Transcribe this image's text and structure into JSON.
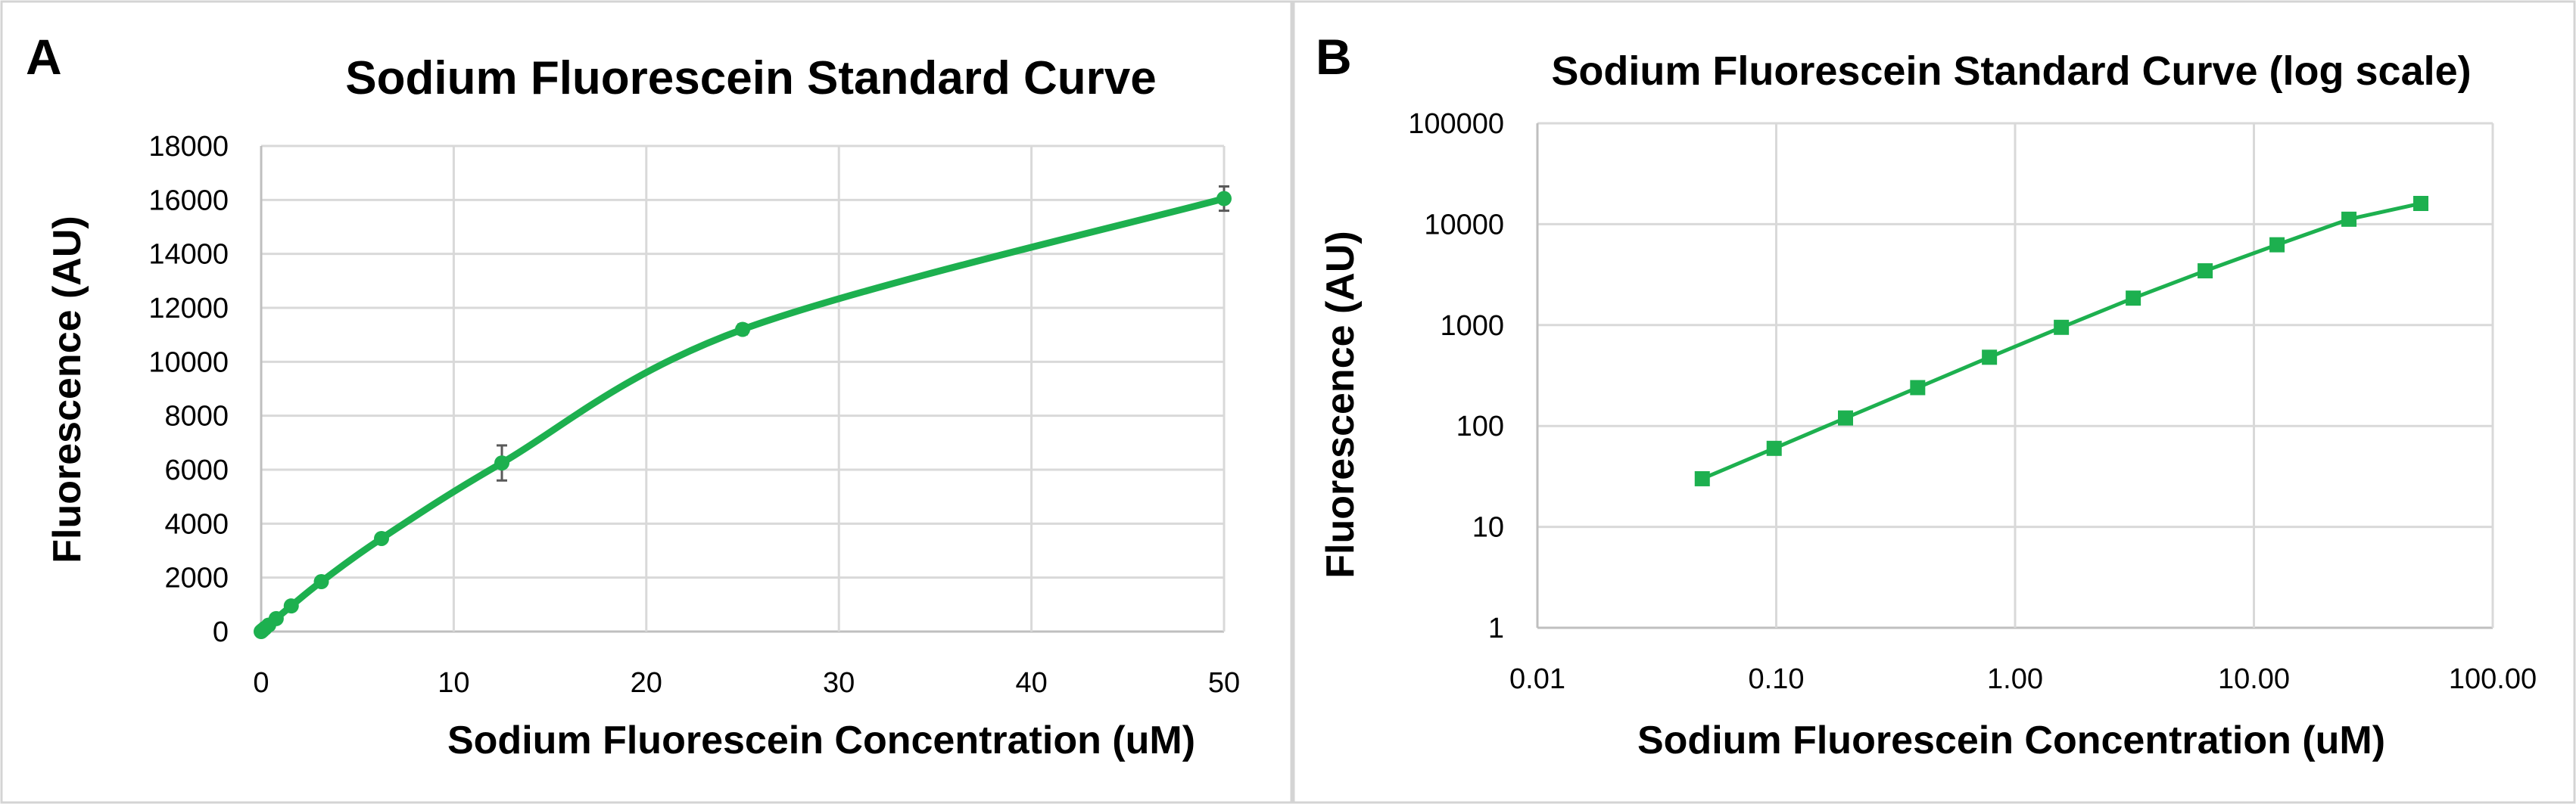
{
  "chart_data": [
    {
      "type": "line",
      "panel_label": "A",
      "title": "Sodium Fluorescein Standard Curve",
      "xlabel": "Sodium Fluorescein Concentration (uM)",
      "ylabel": "Fluorescence (AU)",
      "xlim": [
        0,
        50
      ],
      "ylim": [
        0,
        18000
      ],
      "xticks": [
        "0",
        "10",
        "20",
        "30",
        "40",
        "50"
      ],
      "yticks": [
        "0",
        "2000",
        "4000",
        "6000",
        "8000",
        "10000",
        "12000",
        "14000",
        "16000",
        "18000"
      ],
      "grid": true,
      "legend": "none",
      "color": "#1db04f",
      "series": [
        {
          "x": [
            0,
            0.049,
            0.098,
            0.195,
            0.391,
            0.781,
            1.5625,
            3.125,
            6.25,
            12.5,
            25,
            50
          ],
          "y": [
            0,
            30,
            60,
            120,
            240,
            480,
            950,
            1850,
            3450,
            6250,
            11200,
            16050
          ],
          "error": [
            0,
            0,
            0,
            0,
            0,
            0,
            0,
            60,
            150,
            650,
            180,
            450
          ]
        }
      ]
    },
    {
      "type": "line",
      "panel_label": "B",
      "title": "Sodium Fluorescein Standard Curve (log scale)",
      "xlabel": "Sodium Fluorescein Concentration (uM)",
      "ylabel": "Fluorescence (AU)",
      "xscale": "log",
      "yscale": "log",
      "xlim": [
        0.01,
        100
      ],
      "ylim": [
        1,
        100000
      ],
      "xticks": [
        "0.01",
        "0.10",
        "1.00",
        "10.00",
        "100.00"
      ],
      "yticks": [
        "1",
        "10",
        "100",
        "1000",
        "10000",
        "100000"
      ],
      "grid": true,
      "legend": "none",
      "color": "#1db04f",
      "series": [
        {
          "x": [
            0.049,
            0.098,
            0.195,
            0.391,
            0.781,
            1.5625,
            3.125,
            6.25,
            12.5,
            25,
            50
          ],
          "y": [
            30,
            60,
            120,
            240,
            480,
            950,
            1850,
            3450,
            6250,
            11200,
            16050
          ]
        }
      ]
    }
  ]
}
